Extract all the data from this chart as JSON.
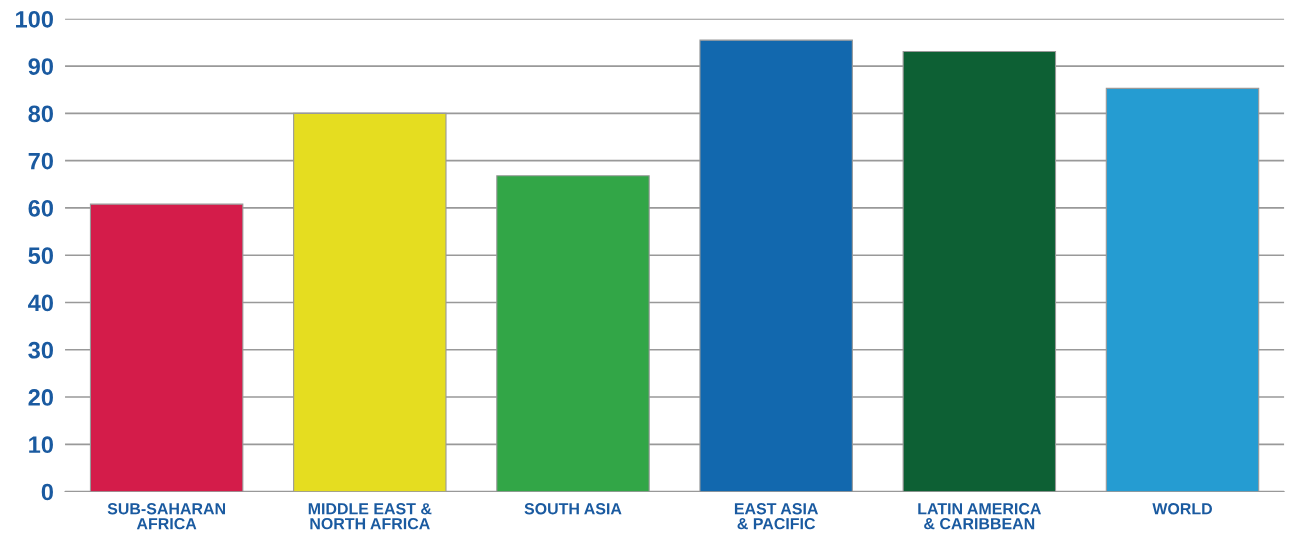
{
  "chart_data": {
    "type": "bar",
    "categories": [
      "SUB-SAHARAN\nAFRICA",
      "MIDDLE EAST &\nNORTH AFRICA",
      "SOUTH ASIA",
      "EAST ASIA\n& PACIFIC",
      "LATIN AMERICA\n& CARIBBEAN",
      "WORLD"
    ],
    "values": [
      60.8,
      80,
      66.8,
      95.5,
      93.1,
      85.3
    ],
    "colors": [
      "#d41c4a",
      "#e5dd20",
      "#32a647",
      "#1268ae",
      "#0d6034",
      "#259cd2"
    ],
    "ylim": [
      0,
      100
    ],
    "yticks": [
      0,
      10,
      20,
      30,
      40,
      50,
      60,
      70,
      80,
      90,
      100
    ],
    "grid": "y"
  }
}
